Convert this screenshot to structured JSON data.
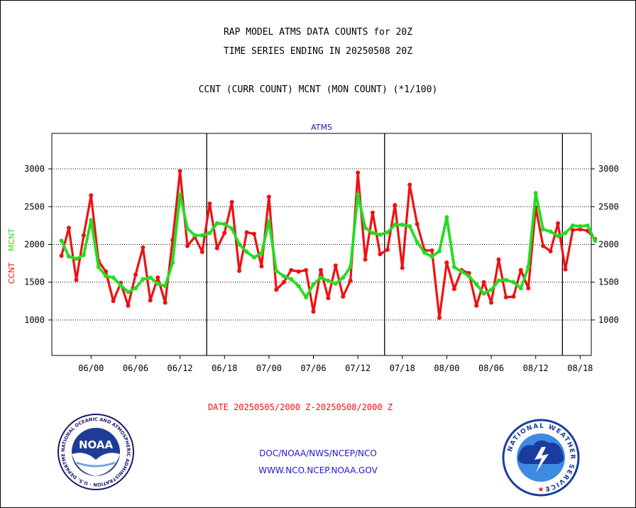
{
  "chart_data": {
    "type": "line",
    "title_lines": [
      "RAP MODEL ATMS DATA COUNTS for 20Z",
      "TIME SERIES ENDING IN 20250508 20Z"
    ],
    "subtitle": "CCNT (CURR COUNT) MCNT (MON COUNT) (*1/100)",
    "panel_label": "ATMS",
    "ylabel_left": [
      "CCNT",
      "MCNT"
    ],
    "xlabel": "DATE 20250505/2000 Z-20250508/2000 Z",
    "x_tick_labels": [
      "06/00",
      "06/06",
      "06/12",
      "06/18",
      "07/00",
      "07/06",
      "07/12",
      "07/18",
      "08/00",
      "08/06",
      "08/12",
      "08/18"
    ],
    "y_ticks": [
      1000,
      1500,
      2000,
      2500,
      3000
    ],
    "ylim": [
      530,
      3470
    ],
    "grid": "horizontal dotted",
    "x_start_hour": -4,
    "hours_per_point": 1,
    "series": [
      {
        "name": "CCNT",
        "color": "#ee1111",
        "style": "solid",
        "values": [
          1850,
          2220,
          1530,
          2120,
          2650,
          1780,
          1640,
          1250,
          1490,
          1190,
          1600,
          1960,
          1260,
          1560,
          1230,
          2060,
          2970,
          1980,
          2100,
          1900,
          2540,
          1950,
          2150,
          2560,
          1650,
          2160,
          2140,
          1710,
          2630,
          1400,
          1500,
          1660,
          1640,
          1660,
          1110,
          1660,
          1290,
          1720,
          1310,
          1520,
          2950,
          1800,
          2420,
          1870,
          1930,
          2520,
          1690,
          2790,
          2270,
          1920,
          1920,
          1030,
          1760,
          1410,
          1660,
          1620,
          1190,
          1500,
          1230,
          1800,
          1300,
          1310,
          1660,
          1420,
          2490,
          1980,
          1910,
          2280,
          1670,
          2190,
          2200,
          2180,
          2070
        ]
      },
      {
        "name": "MCNT",
        "color": "#22dd22",
        "style": "dotted",
        "values": [
          2050,
          1840,
          1810,
          1860,
          2320,
          1700,
          1580,
          1560,
          1460,
          1370,
          1420,
          1540,
          1560,
          1480,
          1450,
          1760,
          2660,
          2210,
          2120,
          2120,
          2150,
          2280,
          2270,
          2210,
          2000,
          1900,
          1830,
          1880,
          2310,
          1650,
          1580,
          1540,
          1450,
          1300,
          1470,
          1560,
          1520,
          1480,
          1560,
          1700,
          2660,
          2220,
          2150,
          2130,
          2160,
          2260,
          2260,
          2240,
          2030,
          1890,
          1840,
          1910,
          2360,
          1700,
          1640,
          1580,
          1470,
          1350,
          1400,
          1520,
          1530,
          1500,
          1420,
          1700,
          2680,
          2200,
          2170,
          2110,
          2150,
          2250,
          2240,
          2250,
          2050
        ]
      }
    ]
  },
  "footer": {
    "line1": "DOC/NOAA/NWS/NCEP/NCO",
    "line2": "WWW.NCO.NCEP.NOAA.GOV"
  },
  "logos": {
    "noaa_text": "NOAA",
    "noaa_ring": "NATIONAL OCEANIC AND ATMOSPHERIC ADMINISTRATION · U.S. DEPARTMENT OF COMMERCE ·",
    "nws_ring": "NATIONAL WEATHER SERVICE"
  },
  "colors": {
    "ccnt": "#ee1111",
    "mcnt": "#22dd22",
    "link_blue": "#1a1ad6",
    "panel_label": "#1a1a99"
  }
}
